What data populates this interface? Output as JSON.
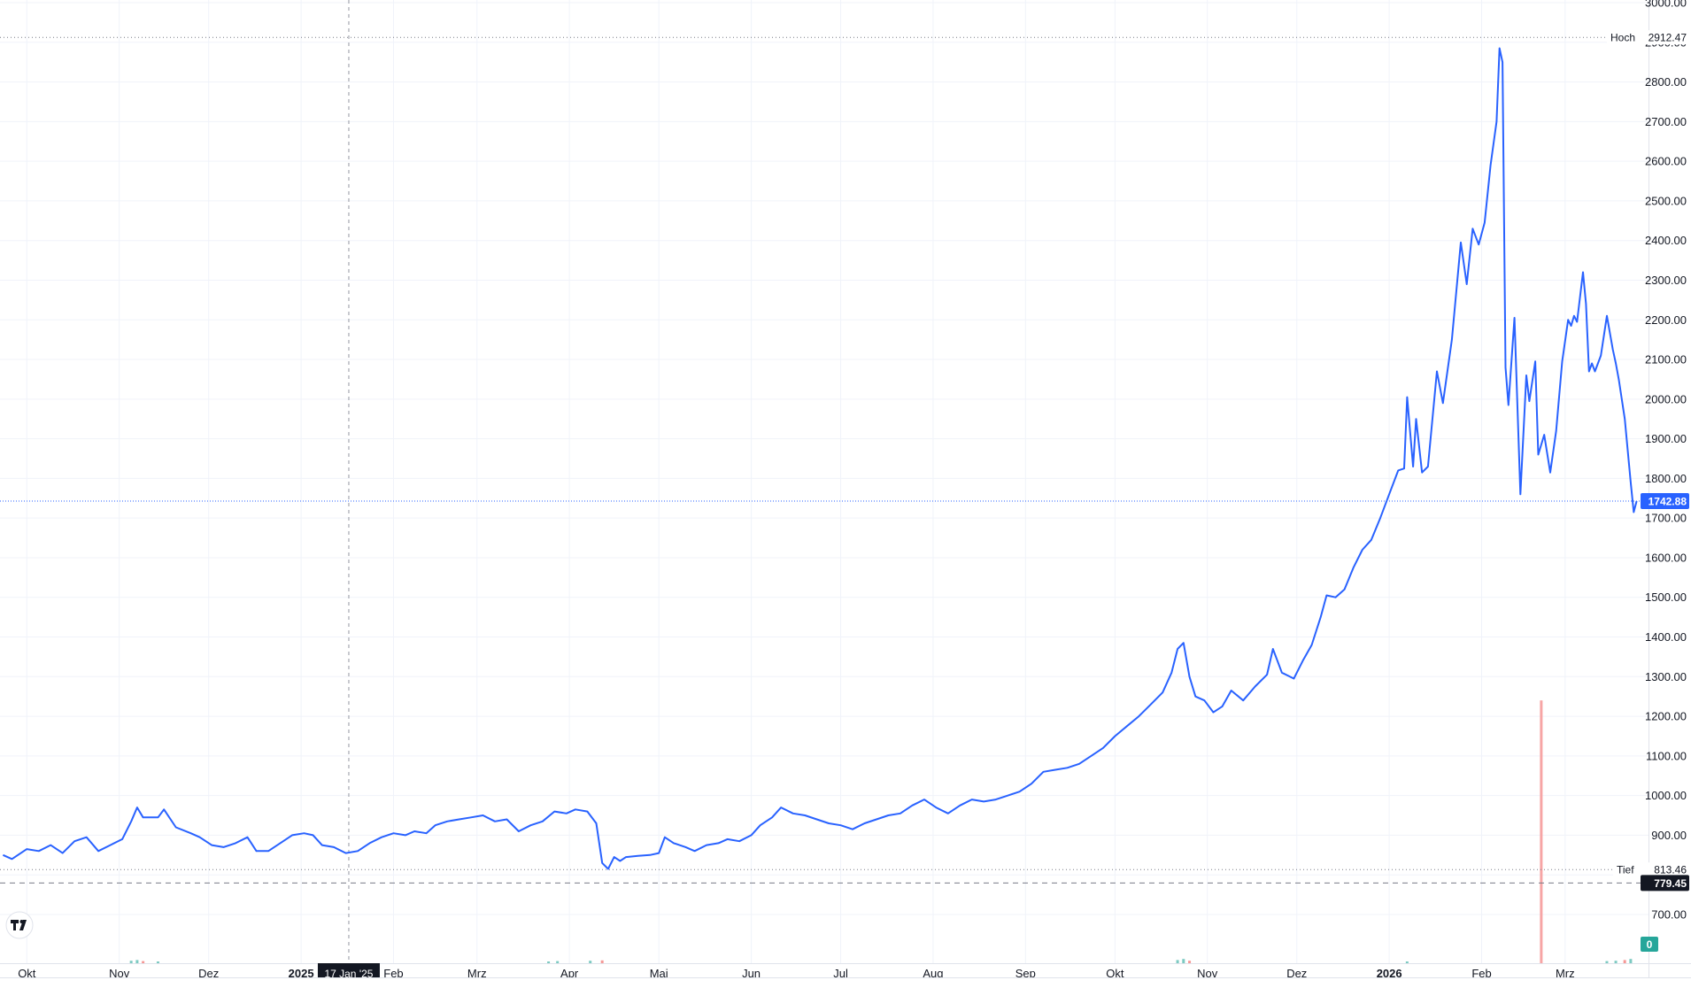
{
  "colors": {
    "line": "#2962ff",
    "grid": "#f0f3fa",
    "axis_text": "#131722",
    "badge_dark": "#131722",
    "badge_blue": "#2962ff",
    "volume_up": "#26a69a",
    "volume_down": "#ef5350",
    "marker": "#f7a5a5"
  },
  "logo_icon": "tradingview-logo-icon",
  "chart_data": {
    "type": "line",
    "x_tick_labels": [
      "Okt",
      "Nov",
      "Dez",
      "2025",
      "Feb",
      "Mrz",
      "Apr",
      "Mai",
      "Jun",
      "Jul",
      "Aug",
      "Sep",
      "Okt",
      "Nov",
      "Dez",
      "2026",
      "Feb",
      "Mrz"
    ],
    "bold_x_ticks": [
      "2025",
      "2026"
    ],
    "y_ticks": [
      "3000.00",
      "2900.00",
      "2800.00",
      "2700.00",
      "2600.00",
      "2500.00",
      "2400.00",
      "2300.00",
      "2200.00",
      "2100.00",
      "2000.00",
      "1900.00",
      "1800.00",
      "1700.00",
      "1600.00",
      "1500.00",
      "1400.00",
      "1300.00",
      "1200.00",
      "1100.00",
      "1000.00",
      "900.00",
      "800.00",
      "700.00"
    ],
    "ylim": [
      640,
      3000
    ],
    "xlim": [
      "2024-09-22",
      "2026-03-26"
    ],
    "grid": true,
    "series": [
      {
        "points": [
          [
            "2024-09-23",
            850
          ],
          [
            "2024-09-26",
            840
          ],
          [
            "2024-10-01",
            865
          ],
          [
            "2024-10-05",
            860
          ],
          [
            "2024-10-09",
            875
          ],
          [
            "2024-10-13",
            855
          ],
          [
            "2024-10-17",
            885
          ],
          [
            "2024-10-21",
            895
          ],
          [
            "2024-10-25",
            860
          ],
          [
            "2024-10-29",
            875
          ],
          [
            "2024-11-02",
            890
          ],
          [
            "2024-11-05",
            935
          ],
          [
            "2024-11-07",
            970
          ],
          [
            "2024-11-09",
            945
          ],
          [
            "2024-11-14",
            945
          ],
          [
            "2024-11-16",
            965
          ],
          [
            "2024-11-20",
            920
          ],
          [
            "2024-11-25",
            905
          ],
          [
            "2024-11-28",
            895
          ],
          [
            "2024-12-02",
            875
          ],
          [
            "2024-12-06",
            870
          ],
          [
            "2024-12-10",
            880
          ],
          [
            "2024-12-14",
            895
          ],
          [
            "2024-12-17",
            860
          ],
          [
            "2024-12-21",
            860
          ],
          [
            "2024-12-25",
            880
          ],
          [
            "2024-12-29",
            900
          ],
          [
            "2025-01-02",
            905
          ],
          [
            "2025-01-05",
            900
          ],
          [
            "2025-01-08",
            875
          ],
          [
            "2025-01-12",
            870
          ],
          [
            "2025-01-16",
            855
          ],
          [
            "2025-01-20",
            860
          ],
          [
            "2025-01-24",
            880
          ],
          [
            "2025-01-28",
            895
          ],
          [
            "2025-02-01",
            905
          ],
          [
            "2025-02-05",
            900
          ],
          [
            "2025-02-08",
            910
          ],
          [
            "2025-02-12",
            905
          ],
          [
            "2025-02-15",
            925
          ],
          [
            "2025-02-19",
            935
          ],
          [
            "2025-02-23",
            940
          ],
          [
            "2025-02-27",
            945
          ],
          [
            "2025-03-03",
            950
          ],
          [
            "2025-03-07",
            935
          ],
          [
            "2025-03-11",
            940
          ],
          [
            "2025-03-15",
            910
          ],
          [
            "2025-03-19",
            925
          ],
          [
            "2025-03-23",
            935
          ],
          [
            "2025-03-27",
            960
          ],
          [
            "2025-03-31",
            955
          ],
          [
            "2025-04-03",
            965
          ],
          [
            "2025-04-07",
            960
          ],
          [
            "2025-04-10",
            930
          ],
          [
            "2025-04-12",
            830
          ],
          [
            "2025-04-14",
            815
          ],
          [
            "2025-04-16",
            845
          ],
          [
            "2025-04-18",
            835
          ],
          [
            "2025-04-20",
            845
          ],
          [
            "2025-04-24",
            848
          ],
          [
            "2025-04-28",
            850
          ],
          [
            "2025-05-01",
            855
          ],
          [
            "2025-05-03",
            895
          ],
          [
            "2025-05-06",
            880
          ],
          [
            "2025-05-10",
            870
          ],
          [
            "2025-05-13",
            860
          ],
          [
            "2025-05-17",
            875
          ],
          [
            "2025-05-21",
            880
          ],
          [
            "2025-05-24",
            890
          ],
          [
            "2025-05-28",
            885
          ],
          [
            "2025-06-01",
            900
          ],
          [
            "2025-06-04",
            925
          ],
          [
            "2025-06-08",
            945
          ],
          [
            "2025-06-11",
            970
          ],
          [
            "2025-06-15",
            955
          ],
          [
            "2025-06-19",
            950
          ],
          [
            "2025-06-23",
            940
          ],
          [
            "2025-06-27",
            930
          ],
          [
            "2025-07-01",
            925
          ],
          [
            "2025-07-05",
            915
          ],
          [
            "2025-07-09",
            930
          ],
          [
            "2025-07-13",
            940
          ],
          [
            "2025-07-17",
            950
          ],
          [
            "2025-07-21",
            955
          ],
          [
            "2025-07-25",
            975
          ],
          [
            "2025-07-29",
            990
          ],
          [
            "2025-08-02",
            970
          ],
          [
            "2025-08-06",
            955
          ],
          [
            "2025-08-10",
            975
          ],
          [
            "2025-08-14",
            990
          ],
          [
            "2025-08-18",
            985
          ],
          [
            "2025-08-22",
            990
          ],
          [
            "2025-08-26",
            1000
          ],
          [
            "2025-08-30",
            1010
          ],
          [
            "2025-09-03",
            1030
          ],
          [
            "2025-09-07",
            1060
          ],
          [
            "2025-09-11",
            1065
          ],
          [
            "2025-09-15",
            1070
          ],
          [
            "2025-09-19",
            1080
          ],
          [
            "2025-09-23",
            1100
          ],
          [
            "2025-09-27",
            1120
          ],
          [
            "2025-10-01",
            1150
          ],
          [
            "2025-10-05",
            1175
          ],
          [
            "2025-10-09",
            1200
          ],
          [
            "2025-10-13",
            1230
          ],
          [
            "2025-10-17",
            1260
          ],
          [
            "2025-10-20",
            1310
          ],
          [
            "2025-10-22",
            1370
          ],
          [
            "2025-10-24",
            1385
          ],
          [
            "2025-10-26",
            1300
          ],
          [
            "2025-10-28",
            1250
          ],
          [
            "2025-10-31",
            1240
          ],
          [
            "2025-11-03",
            1210
          ],
          [
            "2025-11-06",
            1225
          ],
          [
            "2025-11-09",
            1265
          ],
          [
            "2025-11-13",
            1240
          ],
          [
            "2025-11-17",
            1275
          ],
          [
            "2025-11-21",
            1305
          ],
          [
            "2025-11-23",
            1370
          ],
          [
            "2025-11-26",
            1310
          ],
          [
            "2025-11-30",
            1295
          ],
          [
            "2025-12-03",
            1340
          ],
          [
            "2025-12-06",
            1380
          ],
          [
            "2025-12-09",
            1450
          ],
          [
            "2025-12-11",
            1505
          ],
          [
            "2025-12-14",
            1500
          ],
          [
            "2025-12-17",
            1520
          ],
          [
            "2025-12-20",
            1575
          ],
          [
            "2025-12-23",
            1620
          ],
          [
            "2025-12-26",
            1645
          ],
          [
            "2025-12-29",
            1700
          ],
          [
            "2026-01-01",
            1760
          ],
          [
            "2026-01-04",
            1820
          ],
          [
            "2026-01-06",
            1825
          ],
          [
            "2026-01-07",
            2005
          ],
          [
            "2026-01-09",
            1830
          ],
          [
            "2026-01-10",
            1950
          ],
          [
            "2026-01-12",
            1815
          ],
          [
            "2026-01-14",
            1830
          ],
          [
            "2026-01-17",
            2070
          ],
          [
            "2026-01-19",
            1990
          ],
          [
            "2026-01-22",
            2150
          ],
          [
            "2026-01-25",
            2395
          ],
          [
            "2026-01-27",
            2290
          ],
          [
            "2026-01-29",
            2430
          ],
          [
            "2026-01-31",
            2390
          ],
          [
            "2026-02-02",
            2445
          ],
          [
            "2026-02-04",
            2590
          ],
          [
            "2026-02-06",
            2700
          ],
          [
            "2026-02-07",
            2885
          ],
          [
            "2026-02-08",
            2850
          ],
          [
            "2026-02-09",
            2080
          ],
          [
            "2026-02-10",
            1985
          ],
          [
            "2026-02-12",
            2205
          ],
          [
            "2026-02-14",
            1760
          ],
          [
            "2026-02-16",
            2060
          ],
          [
            "2026-02-17",
            1995
          ],
          [
            "2026-02-19",
            2095
          ],
          [
            "2026-02-20",
            1860
          ],
          [
            "2026-02-22",
            1910
          ],
          [
            "2026-02-24",
            1815
          ],
          [
            "2026-02-26",
            1920
          ],
          [
            "2026-02-28",
            2095
          ],
          [
            "2026-03-02",
            2200
          ],
          [
            "2026-03-03",
            2185
          ],
          [
            "2026-03-04",
            2210
          ],
          [
            "2026-03-05",
            2195
          ],
          [
            "2026-03-07",
            2320
          ],
          [
            "2026-03-08",
            2240
          ],
          [
            "2026-03-09",
            2070
          ],
          [
            "2026-03-10",
            2090
          ],
          [
            "2026-03-11",
            2070
          ],
          [
            "2026-03-13",
            2110
          ],
          [
            "2026-03-15",
            2210
          ],
          [
            "2026-03-17",
            2125
          ],
          [
            "2026-03-18",
            2090
          ],
          [
            "2026-03-19",
            2050
          ],
          [
            "2026-03-21",
            1950
          ],
          [
            "2026-03-23",
            1790
          ],
          [
            "2026-03-24",
            1715
          ],
          [
            "2026-03-25",
            1742.88
          ]
        ]
      }
    ],
    "volume": [
      {
        "date": "2024-11-05",
        "v": 0.35,
        "dir": "up"
      },
      {
        "date": "2024-11-07",
        "v": 0.45,
        "dir": "up"
      },
      {
        "date": "2024-11-09",
        "v": 0.3,
        "dir": "down"
      },
      {
        "date": "2024-11-14",
        "v": 0.25,
        "dir": "up"
      },
      {
        "date": "2025-03-25",
        "v": 0.25,
        "dir": "up"
      },
      {
        "date": "2025-03-28",
        "v": 0.3,
        "dir": "up"
      },
      {
        "date": "2025-04-08",
        "v": 0.35,
        "dir": "up"
      },
      {
        "date": "2025-04-12",
        "v": 0.4,
        "dir": "down"
      },
      {
        "date": "2025-10-22",
        "v": 0.45,
        "dir": "up"
      },
      {
        "date": "2025-10-24",
        "v": 0.6,
        "dir": "up"
      },
      {
        "date": "2025-10-26",
        "v": 0.35,
        "dir": "down"
      },
      {
        "date": "2026-01-07",
        "v": 0.25,
        "dir": "up"
      },
      {
        "date": "2026-03-15",
        "v": 0.3,
        "dir": "up"
      },
      {
        "date": "2026-03-18",
        "v": 0.35,
        "dir": "up"
      },
      {
        "date": "2026-03-21",
        "v": 0.45,
        "dir": "down"
      },
      {
        "date": "2026-03-23",
        "v": 0.6,
        "dir": "up"
      }
    ],
    "annotations": {
      "high_label": "Hoch",
      "high_value": "2912.47",
      "low_label": "Tief",
      "low_value": "813.46",
      "last_value": "1742.88",
      "dashed_level_value": "779.45",
      "cursor_date_label": "17 Jan '25",
      "volume_zero_label": "0",
      "event_marker_date": "2026-02-21",
      "event_marker_top_value": 1240
    }
  }
}
